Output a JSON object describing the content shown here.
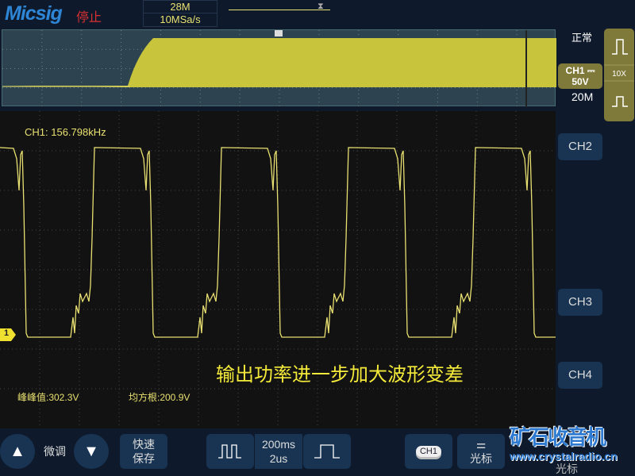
{
  "header": {
    "brand": "Micsig",
    "run_status": "停止",
    "memory_depth": "28M",
    "sample_rate": "10MSa/s"
  },
  "screen": {
    "frequency": "CH1: 156.798kHz",
    "note": "输出功率进一步加大波形变差",
    "ground_marker": "1",
    "measurements": [
      {
        "label": "峰峰值:302.3V"
      },
      {
        "label": "均方根:200.9V"
      }
    ]
  },
  "right_panel": {
    "trigger_mode": "正常",
    "ch1_label": "CH1 ⎓",
    "ch1_scale": "50V",
    "bandwidth": "20M",
    "probe": "10X",
    "ch2": "CH2",
    "ch3": "CH3",
    "ch4": "CH4"
  },
  "bottom": {
    "fine_adjust": "微调",
    "quick_save": "快速\n保存",
    "time_top": "200ms",
    "time_bottom": "2us",
    "ch_select": "CH1",
    "cursor": "光标",
    "cursor2": "光标"
  },
  "watermark": {
    "text": "矿石收音机",
    "url": "www.crystalradio.cn"
  },
  "colors": {
    "trace": "#e8e070",
    "accent": "#807a3a",
    "button": "#183452"
  }
}
